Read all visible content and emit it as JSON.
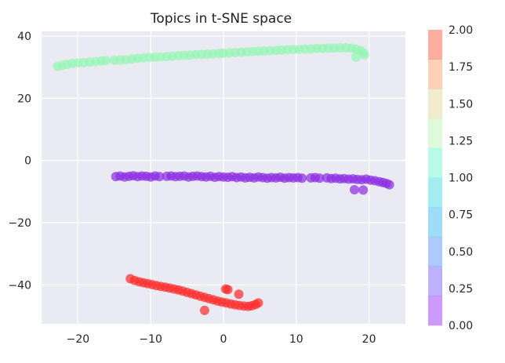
{
  "chart_data": {
    "type": "scatter",
    "title": "Topics in t-SNE space",
    "xlabel": "",
    "ylabel": "",
    "xlim": [
      -25,
      25
    ],
    "ylim": [
      -52.5,
      41.5
    ],
    "xticks": [
      -20,
      -10,
      0,
      10,
      20
    ],
    "yticks": [
      -40,
      -20,
      0,
      20,
      40
    ],
    "xtick_labels": [
      "−20",
      "−10",
      "0",
      "10",
      "20"
    ],
    "ytick_labels": [
      "−40",
      "−20",
      "0",
      "20",
      "40"
    ],
    "grid": true,
    "background": "#EAEAF2",
    "point_alpha": 0.7,
    "colorbar": {
      "colormap": "rainbow",
      "range": [
        0,
        2
      ],
      "segments": 10,
      "ticks": [
        0.0,
        0.25,
        0.5,
        0.75,
        1.0,
        1.25,
        1.5,
        1.75,
        2.0
      ],
      "tick_labels": [
        "0.00",
        "0.25",
        "0.50",
        "0.75",
        "1.00",
        "1.25",
        "1.50",
        "1.75",
        "2.00"
      ],
      "colors": [
        "#8000FF",
        "#5A3DFD",
        "#3478F6",
        "#0EA8EA",
        "#19CFDA",
        "#4BF2C4",
        "#ABF2A3",
        "#D8CE81",
        "#FF8A4E",
        "#FF3313"
      ]
    },
    "series": [
      {
        "value": 1,
        "color": "#94F6B3",
        "points": [
          [
            -22.8,
            30.2
          ],
          [
            -22.2,
            30.6
          ],
          [
            -21.5,
            30.9
          ],
          [
            -20.8,
            31.2
          ],
          [
            -20.0,
            31.4
          ],
          [
            -19.2,
            31.5
          ],
          [
            -18.4,
            31.6
          ],
          [
            -17.6,
            31.8
          ],
          [
            -16.8,
            32.0
          ],
          [
            -16.2,
            32.1
          ],
          [
            -15.0,
            32.2
          ],
          [
            -14.2,
            32.3
          ],
          [
            -13.4,
            32.4
          ],
          [
            -12.6,
            32.6
          ],
          [
            -11.8,
            32.8
          ],
          [
            -11.0,
            33.0
          ],
          [
            -10.2,
            33.1
          ],
          [
            -9.4,
            33.2
          ],
          [
            -8.6,
            33.3
          ],
          [
            -7.8,
            33.4
          ],
          [
            -7.0,
            33.5
          ],
          [
            -6.2,
            33.7
          ],
          [
            -5.4,
            33.8
          ],
          [
            -4.6,
            33.9
          ],
          [
            -3.8,
            34.0
          ],
          [
            -3.0,
            34.1
          ],
          [
            -2.2,
            34.2
          ],
          [
            -1.4,
            34.3
          ],
          [
            -0.6,
            34.4
          ],
          [
            0.0,
            34.5
          ],
          [
            0.8,
            34.6
          ],
          [
            1.6,
            34.7
          ],
          [
            2.4,
            34.8
          ],
          [
            3.2,
            34.9
          ],
          [
            4.0,
            35.0
          ],
          [
            4.8,
            35.1
          ],
          [
            5.6,
            35.2
          ],
          [
            6.4,
            35.3
          ],
          [
            7.2,
            35.4
          ],
          [
            8.0,
            35.5
          ],
          [
            8.8,
            35.6
          ],
          [
            9.6,
            35.7
          ],
          [
            10.4,
            35.7
          ],
          [
            11.2,
            35.8
          ],
          [
            12.0,
            35.9
          ],
          [
            12.8,
            36.0
          ],
          [
            13.6,
            36.0
          ],
          [
            14.4,
            36.1
          ],
          [
            15.2,
            36.1
          ],
          [
            16.0,
            36.2
          ],
          [
            16.8,
            36.2
          ],
          [
            17.6,
            36.1
          ],
          [
            18.2,
            35.8
          ],
          [
            18.8,
            35.3
          ],
          [
            19.2,
            34.6
          ],
          [
            19.4,
            34.0
          ],
          [
            18.2,
            33.2
          ]
        ]
      },
      {
        "value": 0,
        "color": "#8A2BE2",
        "points": [
          [
            -14.8,
            -5.2
          ],
          [
            -14.2,
            -5.0
          ],
          [
            -13.6,
            -5.3
          ],
          [
            -13.0,
            -5.1
          ],
          [
            -12.4,
            -4.9
          ],
          [
            -11.8,
            -5.2
          ],
          [
            -11.2,
            -5.0
          ],
          [
            -10.6,
            -5.1
          ],
          [
            -10.0,
            -5.3
          ],
          [
            -9.4,
            -5.0
          ],
          [
            -8.8,
            -5.2
          ],
          [
            -7.8,
            -5.1
          ],
          [
            -7.2,
            -5.0
          ],
          [
            -6.6,
            -5.2
          ],
          [
            -6.0,
            -5.1
          ],
          [
            -5.4,
            -5.0
          ],
          [
            -4.8,
            -5.3
          ],
          [
            -4.2,
            -5.1
          ],
          [
            -3.6,
            -5.0
          ],
          [
            -3.0,
            -5.2
          ],
          [
            -2.4,
            -5.3
          ],
          [
            -1.8,
            -5.1
          ],
          [
            -1.2,
            -5.4
          ],
          [
            -0.6,
            -5.2
          ],
          [
            0.0,
            -5.3
          ],
          [
            0.6,
            -5.4
          ],
          [
            1.2,
            -5.2
          ],
          [
            1.8,
            -5.5
          ],
          [
            2.4,
            -5.3
          ],
          [
            3.0,
            -5.6
          ],
          [
            3.6,
            -5.4
          ],
          [
            4.2,
            -5.6
          ],
          [
            4.8,
            -5.3
          ],
          [
            5.4,
            -5.5
          ],
          [
            6.0,
            -5.7
          ],
          [
            6.6,
            -5.5
          ],
          [
            7.2,
            -5.6
          ],
          [
            7.8,
            -5.4
          ],
          [
            8.4,
            -5.7
          ],
          [
            9.0,
            -5.5
          ],
          [
            9.6,
            -5.6
          ],
          [
            10.2,
            -5.5
          ],
          [
            10.8,
            -5.7
          ],
          [
            12.0,
            -5.6
          ],
          [
            12.6,
            -5.5
          ],
          [
            13.2,
            -5.7
          ],
          [
            14.2,
            -5.6
          ],
          [
            14.8,
            -5.8
          ],
          [
            15.4,
            -5.7
          ],
          [
            16.0,
            -5.9
          ],
          [
            16.6,
            -5.8
          ],
          [
            17.2,
            -6.0
          ],
          [
            17.8,
            -5.9
          ],
          [
            18.4,
            -6.1
          ],
          [
            19.0,
            -6.2
          ],
          [
            19.6,
            -6.0
          ],
          [
            20.2,
            -6.3
          ],
          [
            20.8,
            -6.5
          ],
          [
            21.4,
            -6.8
          ],
          [
            21.9,
            -7.1
          ],
          [
            22.4,
            -7.4
          ],
          [
            22.8,
            -7.8
          ],
          [
            18.0,
            -9.4
          ],
          [
            19.2,
            -9.5
          ]
        ]
      },
      {
        "value": 2,
        "color": "#FF2A2A",
        "points": [
          [
            -12.8,
            -38.0
          ],
          [
            -12.2,
            -38.6
          ],
          [
            -11.6,
            -39.0
          ],
          [
            -11.0,
            -39.3
          ],
          [
            -10.4,
            -39.6
          ],
          [
            -9.8,
            -39.9
          ],
          [
            -9.2,
            -40.2
          ],
          [
            -8.6,
            -40.5
          ],
          [
            -8.0,
            -40.7
          ],
          [
            -7.4,
            -41.0
          ],
          [
            -6.8,
            -41.3
          ],
          [
            -6.2,
            -41.6
          ],
          [
            -5.6,
            -42.0
          ],
          [
            -5.0,
            -42.4
          ],
          [
            -4.4,
            -42.8
          ],
          [
            -3.8,
            -43.2
          ],
          [
            -3.2,
            -43.6
          ],
          [
            -2.6,
            -44.0
          ],
          [
            -2.0,
            -44.4
          ],
          [
            -1.4,
            -44.8
          ],
          [
            -0.8,
            -45.2
          ],
          [
            -0.2,
            -45.5
          ],
          [
            0.4,
            -45.8
          ],
          [
            1.0,
            -46.1
          ],
          [
            1.6,
            -46.4
          ],
          [
            2.2,
            -46.6
          ],
          [
            2.8,
            -46.8
          ],
          [
            3.4,
            -46.9
          ],
          [
            3.9,
            -46.7
          ],
          [
            4.4,
            -46.3
          ],
          [
            4.8,
            -45.8
          ],
          [
            -2.6,
            -48.2
          ],
          [
            0.3,
            -41.3
          ],
          [
            0.6,
            -41.5
          ],
          [
            2.1,
            -43.0
          ]
        ]
      }
    ]
  }
}
